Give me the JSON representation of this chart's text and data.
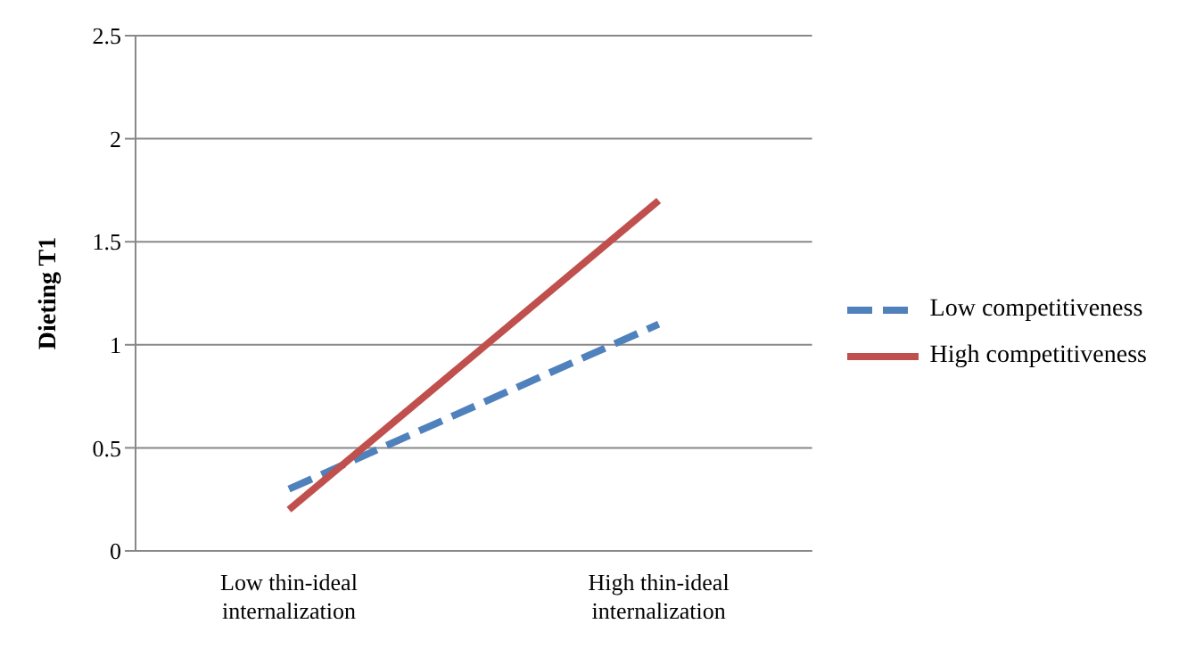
{
  "chart_data": {
    "type": "line",
    "ylabel": "Dieting T1",
    "categories": [
      "Low thin-ideal internalization",
      "High thin-ideal internalization"
    ],
    "series": [
      {
        "name": "Low competitiveness",
        "color": "#4f81bd",
        "values": [
          0.3,
          1.1
        ],
        "line_style": "dashed"
      },
      {
        "name": "High competitiveness",
        "color": "#c0504d",
        "values": [
          0.2,
          1.7
        ],
        "line_style": "solid"
      }
    ],
    "ylim": [
      0,
      2.5
    ],
    "yticks": [
      0,
      0.5,
      1,
      1.5,
      2,
      2.5
    ],
    "grid": "y",
    "legend": "right",
    "marker": "none"
  }
}
